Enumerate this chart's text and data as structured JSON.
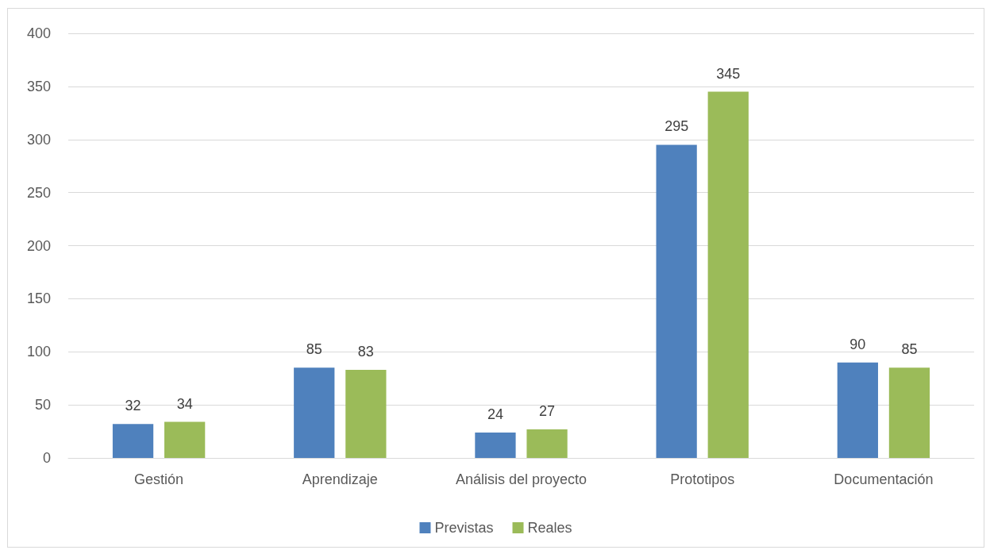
{
  "chart_data": {
    "type": "bar",
    "categories": [
      "Gestión",
      "Aprendizaje",
      "Análisis del proyecto",
      "Prototipos",
      "Documentación"
    ],
    "series": [
      {
        "name": "Previstas",
        "color": "#4f81bd",
        "values": [
          32,
          85,
          24,
          295,
          90
        ]
      },
      {
        "name": "Reales",
        "color": "#9bbb59",
        "values": [
          34,
          83,
          27,
          345,
          85
        ]
      }
    ],
    "ylim": [
      0,
      400
    ],
    "yticks": [
      0,
      50,
      100,
      150,
      200,
      250,
      300,
      350,
      400
    ],
    "grid": "y",
    "legend": "bottom",
    "data_labels": true
  }
}
